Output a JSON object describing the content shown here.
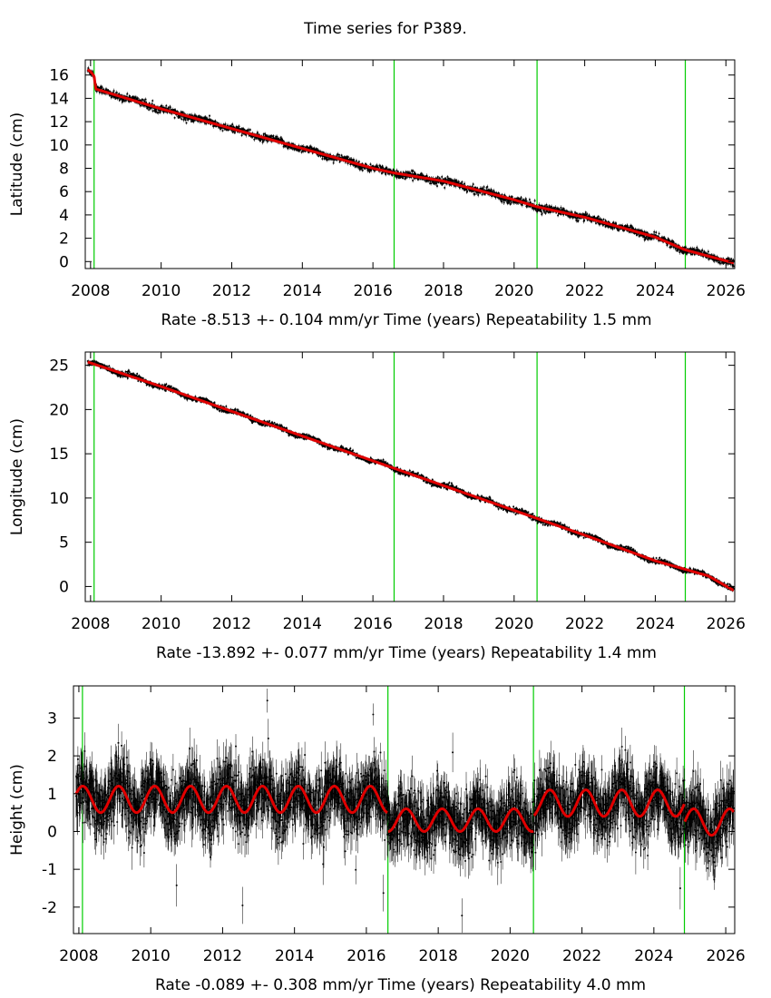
{
  "title": "Time series for P389.",
  "chart_data": [
    {
      "type": "line",
      "ylabel": "Latitude (cm)",
      "xlabel_rate": "Rate -8.513 +- 0.104 mm/yr",
      "xlabel_time": "Time (years)",
      "xlabel_repeat": "Repeatability 1.5 mm",
      "xlim": [
        2007.85,
        2026.25
      ],
      "ylim": [
        -0.6,
        17.3
      ],
      "xticks": [
        2008,
        2010,
        2012,
        2014,
        2016,
        2018,
        2020,
        2022,
        2024,
        2026
      ],
      "yticks": [
        0,
        2,
        4,
        6,
        8,
        10,
        12,
        14,
        16
      ],
      "events": [
        2008.1,
        2016.6,
        2020.65,
        2024.85
      ],
      "model": {
        "x": [
          2007.9,
          2008.0,
          2008.1,
          2008.15,
          2010,
          2012,
          2014,
          2016,
          2016.6,
          2018,
          2020,
          2020.65,
          2022,
          2024,
          2024.85,
          2026.2
        ],
        "y": [
          16.5,
          16.3,
          15.9,
          14.8,
          13.1,
          11.4,
          9.7,
          8.0,
          7.6,
          6.9,
          5.3,
          4.7,
          3.8,
          2.1,
          1.0,
          -0.1
        ]
      },
      "noise_cm": 0.15,
      "seasonal_amp_cm": 0.1
    },
    {
      "type": "line",
      "ylabel": "Longitude (cm)",
      "xlabel_rate": "Rate -13.892 +- 0.077 mm/yr",
      "xlabel_time": "Time (years)",
      "xlabel_repeat": "Repeatability 1.4 mm",
      "xlim": [
        2007.85,
        2026.25
      ],
      "ylim": [
        -1.7,
        26.5
      ],
      "xticks": [
        2008,
        2010,
        2012,
        2014,
        2016,
        2018,
        2020,
        2022,
        2024,
        2026
      ],
      "yticks": [
        0,
        5,
        10,
        15,
        20,
        25
      ],
      "events": [
        2008.1,
        2016.6,
        2020.65,
        2024.85
      ],
      "model": {
        "x": [
          2007.9,
          2010,
          2012,
          2014,
          2016,
          2018,
          2020,
          2022,
          2024,
          2025.5,
          2026.2
        ],
        "y": [
          25.4,
          22.6,
          19.8,
          17.0,
          14.2,
          11.4,
          8.6,
          5.8,
          2.9,
          1.2,
          -0.4
        ]
      },
      "noise_cm": 0.14,
      "seasonal_amp_cm": 0.15
    },
    {
      "type": "line",
      "ylabel": "Height (cm)",
      "xlabel_rate": "Rate -0.089 +- 0.308 mm/yr",
      "xlabel_time": "Time (years)",
      "xlabel_repeat": "Repeatability 4.0 mm",
      "xlim": [
        2007.85,
        2026.25
      ],
      "ylim": [
        -2.7,
        3.85
      ],
      "xticks": [
        2008,
        2010,
        2012,
        2014,
        2016,
        2018,
        2020,
        2022,
        2024,
        2026
      ],
      "yticks": [
        -2,
        -1,
        0,
        1,
        2,
        3
      ],
      "events": [
        2008.1,
        2016.6,
        2020.65,
        2024.85
      ],
      "model_segments": [
        {
          "x0": 2007.9,
          "x1": 2016.6,
          "offset": 0.85,
          "amp": 0.35
        },
        {
          "x0": 2016.6,
          "x1": 2020.65,
          "offset": 0.3,
          "amp": 0.3
        },
        {
          "x0": 2020.65,
          "x1": 2024.85,
          "offset": 0.75,
          "amp": 0.35
        },
        {
          "x0": 2024.85,
          "x1": 2026.2,
          "offset": 0.25,
          "amp": 0.35
        }
      ],
      "noise_cm": 0.4
    }
  ],
  "colors": {
    "data": "#000000",
    "model": "#e00000",
    "event": "#00cc00",
    "axis": "#000000"
  }
}
